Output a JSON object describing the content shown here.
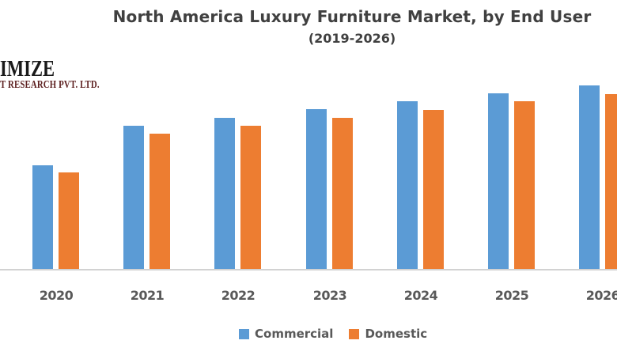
{
  "title": "North America Luxury Furniture Market, by End User",
  "subtitle": "(2019-2026)",
  "logo": {
    "line1": "IMIZE",
    "line2": "T RESEARCH PVT. LTD."
  },
  "legend": [
    {
      "label": "Commercial",
      "color": "#5b9bd5"
    },
    {
      "label": "Domestic",
      "color": "#ed7d31"
    }
  ],
  "chart_data": {
    "type": "bar",
    "title": "North America Luxury Furniture Market, by End User",
    "subtitle": "(2019-2026)",
    "categories": [
      "2020",
      "2021",
      "2022",
      "2023",
      "2024",
      "2025",
      "2026"
    ],
    "series": [
      {
        "name": "Commercial",
        "color": "#5b9bd5",
        "values": [
          131,
          181,
          191,
          202,
          212,
          222,
          232
        ]
      },
      {
        "name": "Domestic",
        "color": "#ed7d31",
        "values": [
          122,
          171,
          181,
          191,
          201,
          212,
          221
        ]
      }
    ],
    "ylim": [
      0,
      250
    ],
    "y_axis_visible": false,
    "gridlines": false,
    "legend_position": "bottom"
  },
  "colors": {
    "commercial": "#5b9bd5",
    "domestic": "#ed7d31",
    "title_text": "#404040",
    "axis_label_text": "#595959",
    "axis_line": "#d2d2d2",
    "logo_line1": "#1a1a1a",
    "logo_line2": "#5e2121"
  }
}
